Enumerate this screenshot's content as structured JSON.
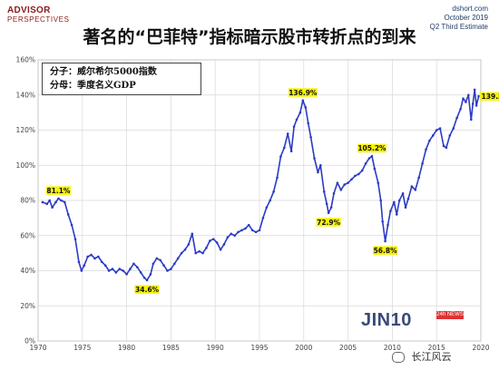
{
  "brand": {
    "line1": "ADVISOR",
    "line2": "PERSPECTIVES"
  },
  "source": {
    "line1": "dshort.com",
    "line2": "October 2019",
    "line3": "Q2 Third Estimate"
  },
  "title": "著名的“巴菲特”指标暗示股市转折点的到来",
  "legend": {
    "line1": "分子：威尔希尔5000指数",
    "line2": "分母：季度名义GDP"
  },
  "watermark": {
    "text": "JIN10",
    "badge": "24h NEWS",
    "wechat": "长江风云"
  },
  "colors": {
    "line": "#2b3bc4",
    "grid": "#d8d8d8",
    "highlight": "#f5f20a",
    "frame": "#888888"
  },
  "chart_data": {
    "type": "line",
    "title": "著名的“巴菲特”指标暗示股市转折点的到来",
    "xlabel": "",
    "ylabel": "",
    "xlim": [
      1970,
      2020
    ],
    "ylim": [
      0,
      160
    ],
    "x_ticks": [
      "1970",
      "1975",
      "1980",
      "1985",
      "1990",
      "1995",
      "2000",
      "2005",
      "2010",
      "2015",
      "2020"
    ],
    "y_ticks": [
      "0%",
      "20%",
      "40%",
      "60%",
      "80%",
      "100%",
      "120%",
      "140%",
      "160%"
    ],
    "grid": true,
    "series": [
      {
        "points": [
          [
            1970.5,
            79
          ],
          [
            1971.0,
            78
          ],
          [
            1971.3,
            80
          ],
          [
            1971.6,
            76
          ],
          [
            1972.0,
            79
          ],
          [
            1972.3,
            81.1
          ],
          [
            1972.6,
            80
          ],
          [
            1973.0,
            79
          ],
          [
            1973.4,
            72
          ],
          [
            1973.8,
            66
          ],
          [
            1974.2,
            58
          ],
          [
            1974.6,
            45
          ],
          [
            1974.9,
            40
          ],
          [
            1975.2,
            43
          ],
          [
            1975.6,
            48
          ],
          [
            1976.0,
            49
          ],
          [
            1976.4,
            47
          ],
          [
            1976.8,
            48
          ],
          [
            1977.2,
            45
          ],
          [
            1977.6,
            43
          ],
          [
            1978.0,
            40
          ],
          [
            1978.4,
            41
          ],
          [
            1978.8,
            39
          ],
          [
            1979.2,
            41
          ],
          [
            1979.6,
            40
          ],
          [
            1980.0,
            38
          ],
          [
            1980.4,
            41
          ],
          [
            1980.8,
            44
          ],
          [
            1981.2,
            42
          ],
          [
            1981.6,
            39
          ],
          [
            1982.0,
            36
          ],
          [
            1982.3,
            34.6
          ],
          [
            1982.7,
            38
          ],
          [
            1983.0,
            44
          ],
          [
            1983.4,
            47
          ],
          [
            1983.8,
            46
          ],
          [
            1984.2,
            43
          ],
          [
            1984.6,
            40
          ],
          [
            1985.0,
            41
          ],
          [
            1985.4,
            44
          ],
          [
            1985.8,
            47
          ],
          [
            1986.2,
            50
          ],
          [
            1986.6,
            52
          ],
          [
            1987.0,
            55
          ],
          [
            1987.4,
            61
          ],
          [
            1987.8,
            50
          ],
          [
            1988.2,
            51
          ],
          [
            1988.6,
            50
          ],
          [
            1989.0,
            53
          ],
          [
            1989.4,
            57
          ],
          [
            1989.8,
            58
          ],
          [
            1990.2,
            56
          ],
          [
            1990.6,
            52
          ],
          [
            1991.0,
            55
          ],
          [
            1991.4,
            59
          ],
          [
            1991.8,
            61
          ],
          [
            1992.2,
            60
          ],
          [
            1992.6,
            62
          ],
          [
            1993.0,
            63
          ],
          [
            1993.4,
            64
          ],
          [
            1993.8,
            66
          ],
          [
            1994.2,
            63
          ],
          [
            1994.6,
            62
          ],
          [
            1995.0,
            63
          ],
          [
            1995.4,
            70
          ],
          [
            1995.8,
            76
          ],
          [
            1996.2,
            80
          ],
          [
            1996.6,
            85
          ],
          [
            1997.0,
            93
          ],
          [
            1997.4,
            105
          ],
          [
            1997.8,
            110
          ],
          [
            1998.2,
            118
          ],
          [
            1998.6,
            108
          ],
          [
            1998.9,
            122
          ],
          [
            1999.2,
            126
          ],
          [
            1999.6,
            130
          ],
          [
            1999.9,
            136.9
          ],
          [
            2000.2,
            133
          ],
          [
            2000.5,
            124
          ],
          [
            2000.8,
            116
          ],
          [
            2001.2,
            104
          ],
          [
            2001.6,
            96
          ],
          [
            2001.9,
            100
          ],
          [
            2002.3,
            85
          ],
          [
            2002.6,
            78
          ],
          [
            2002.8,
            72.9
          ],
          [
            2003.1,
            76
          ],
          [
            2003.4,
            84
          ],
          [
            2003.8,
            90
          ],
          [
            2004.2,
            86
          ],
          [
            2004.6,
            89
          ],
          [
            2005.0,
            90
          ],
          [
            2005.4,
            92
          ],
          [
            2005.8,
            94
          ],
          [
            2006.2,
            95
          ],
          [
            2006.6,
            97
          ],
          [
            2007.0,
            101
          ],
          [
            2007.4,
            104
          ],
          [
            2007.7,
            105.2
          ],
          [
            2008.0,
            98
          ],
          [
            2008.4,
            90
          ],
          [
            2008.7,
            80
          ],
          [
            2008.9,
            68
          ],
          [
            2009.2,
            56.8
          ],
          [
            2009.5,
            66
          ],
          [
            2009.8,
            74
          ],
          [
            2010.2,
            79
          ],
          [
            2010.5,
            72
          ],
          [
            2010.8,
            80
          ],
          [
            2011.2,
            84
          ],
          [
            2011.5,
            76
          ],
          [
            2011.8,
            81
          ],
          [
            2012.2,
            88
          ],
          [
            2012.6,
            86
          ],
          [
            2013.0,
            93
          ],
          [
            2013.4,
            101
          ],
          [
            2013.8,
            109
          ],
          [
            2014.2,
            114
          ],
          [
            2014.6,
            117
          ],
          [
            2015.0,
            120
          ],
          [
            2015.4,
            121
          ],
          [
            2015.8,
            111
          ],
          [
            2016.1,
            110
          ],
          [
            2016.5,
            117
          ],
          [
            2016.9,
            121
          ],
          [
            2017.3,
            127
          ],
          [
            2017.7,
            132
          ],
          [
            2018.0,
            138
          ],
          [
            2018.3,
            136
          ],
          [
            2018.6,
            140
          ],
          [
            2018.9,
            126
          ],
          [
            2019.1,
            135
          ],
          [
            2019.3,
            143
          ],
          [
            2019.5,
            134
          ],
          [
            2019.75,
            139.3
          ]
        ]
      }
    ],
    "annotations": [
      {
        "x": 1972.3,
        "y": 81.1,
        "label": "81.1%"
      },
      {
        "x": 1982.3,
        "y": 34.6,
        "label": "34.6%"
      },
      {
        "x": 1999.9,
        "y": 136.9,
        "label": "136.9%"
      },
      {
        "x": 2002.8,
        "y": 72.9,
        "label": "72.9%"
      },
      {
        "x": 2007.7,
        "y": 105.2,
        "label": "105.2%"
      },
      {
        "x": 2009.2,
        "y": 56.8,
        "label": "56.8%"
      },
      {
        "x": 2019.75,
        "y": 139.3,
        "label": "139.3%"
      }
    ]
  }
}
